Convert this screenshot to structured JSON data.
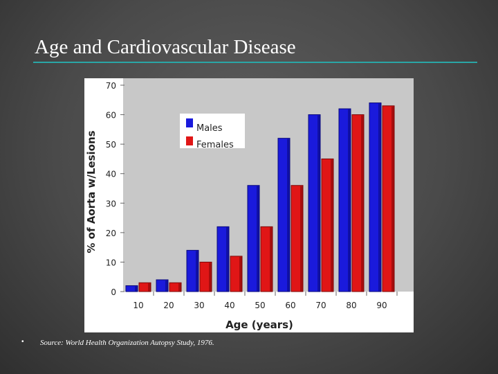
{
  "slide": {
    "title": "Age and Cardiovascular Disease",
    "bullet": "•",
    "source": "Source: World Health Organization Autopsy Study, 1976."
  },
  "colors": {
    "males": "#1a1adc",
    "females": "#e01616",
    "plot_bg": "#c8c8c8",
    "title_rule": "#2aa6a6"
  },
  "chart_data": {
    "type": "bar",
    "categories": [
      "10",
      "20",
      "30",
      "40",
      "50",
      "60",
      "70",
      "80",
      "90"
    ],
    "series": [
      {
        "name": "Males",
        "values": [
          2,
          4,
          14,
          22,
          36,
          52,
          60,
          62,
          64
        ]
      },
      {
        "name": "Females",
        "values": [
          3,
          3,
          10,
          12,
          22,
          36,
          45,
          60,
          63
        ]
      }
    ],
    "yticks": [
      "0",
      "10",
      "20",
      "30",
      "40",
      "50",
      "60",
      "70"
    ],
    "xlabel": "Age (years)",
    "ylabel": "% of Aorta w/Lesions",
    "ylim": [
      0,
      70
    ],
    "legend": "top-left",
    "grid": false
  }
}
